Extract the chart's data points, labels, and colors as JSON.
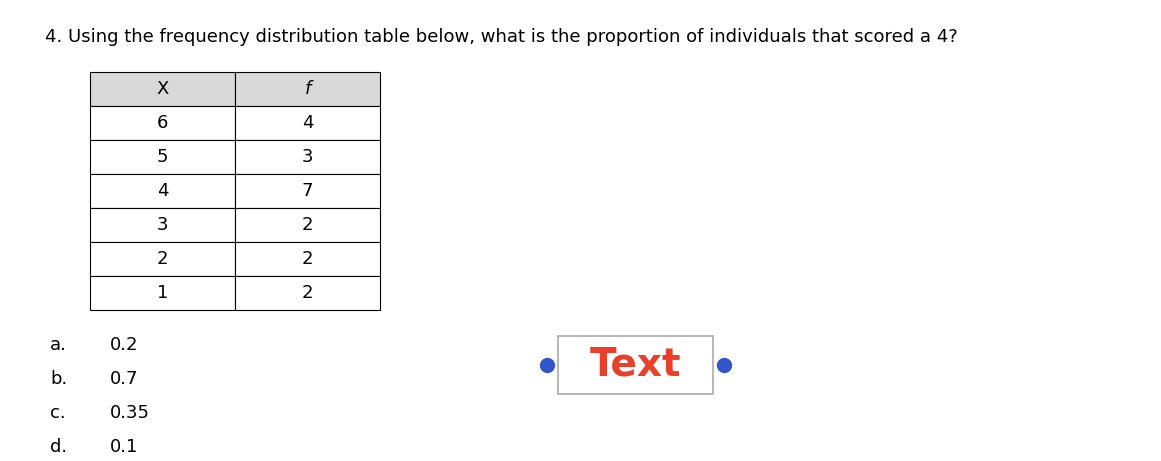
{
  "title": "4. Using the frequency distribution table below, what is the proportion of individuals that scored a 4?",
  "title_fontsize": 13,
  "table_x_col": [
    "X",
    "6",
    "5",
    "4",
    "3",
    "2",
    "1"
  ],
  "table_f_col": [
    "f",
    "4",
    "3",
    "7",
    "2",
    "2",
    "2"
  ],
  "header_bg": "#d9d9d9",
  "table_bg": "#ffffff",
  "choices_labels": [
    "a.",
    "b.",
    "c.",
    "d."
  ],
  "choices_values": [
    "0.2",
    "0.7",
    "0.35",
    "0.1"
  ],
  "text_box_label": "Text",
  "text_color": "#e8402a",
  "dot_color": "#3355cc",
  "box_border_color": "#aaaaaa",
  "background_color": "#ffffff"
}
